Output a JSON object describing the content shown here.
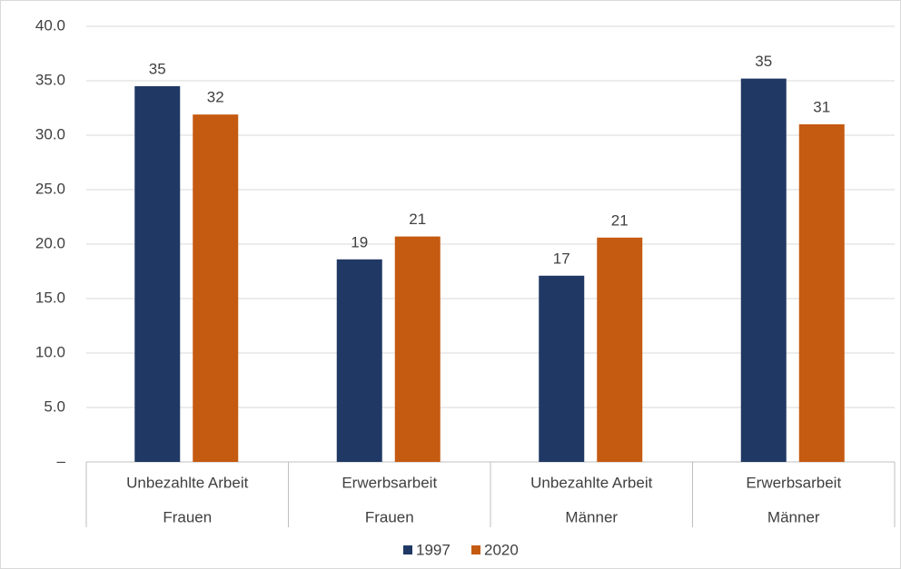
{
  "chart_data": {
    "type": "bar",
    "categories": [
      "Unbezahlte Arbeit",
      "Erwerbsarbeit",
      "Unbezahlte Arbeit",
      "Erwerbsarbeit"
    ],
    "category_groups": [
      "Frauen",
      "Frauen",
      "Männer",
      "Männer"
    ],
    "series": [
      {
        "name": "1997",
        "color": "#203864",
        "values": [
          34.5,
          18.6,
          17.1,
          35.2
        ],
        "value_labels": [
          "35",
          "19",
          "17",
          "35"
        ]
      },
      {
        "name": "2020",
        "color": "#c55a11",
        "values": [
          31.9,
          20.7,
          20.6,
          31.0
        ],
        "value_labels": [
          "32",
          "21",
          "21",
          "31"
        ]
      }
    ],
    "ylim": [
      0,
      40
    ],
    "yticks": [
      {
        "value": 0,
        "label": "–"
      },
      {
        "value": 5,
        "label": "5.0"
      },
      {
        "value": 10,
        "label": "10.0"
      },
      {
        "value": 15,
        "label": "15.0"
      },
      {
        "value": 20,
        "label": "20.0"
      },
      {
        "value": 25,
        "label": "25.0"
      },
      {
        "value": 30,
        "label": "30.0"
      },
      {
        "value": 35,
        "label": "35.0"
      },
      {
        "value": 40,
        "label": "40.0"
      }
    ],
    "grid": true,
    "legend": "bottom"
  }
}
